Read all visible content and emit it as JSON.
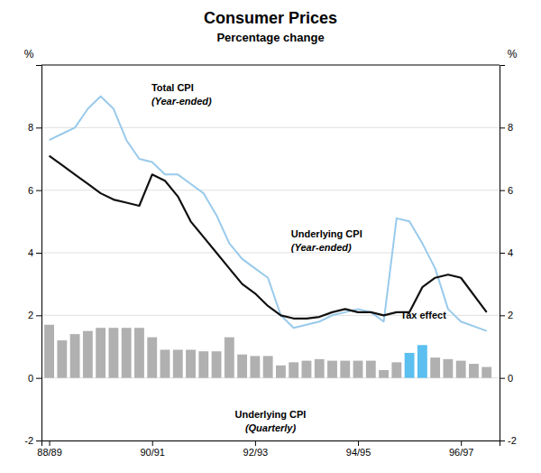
{
  "chart_data": {
    "type": "bar",
    "title": "Consumer Prices",
    "subtitle": "Percentage change",
    "ylabel": "%",
    "y2label": "%",
    "xlim": [
      1987.85,
      1996.75
    ],
    "xticks": [
      {
        "value": 1988,
        "label": "88/89"
      },
      {
        "value": 1990,
        "label": "90/91"
      },
      {
        "value": 1992,
        "label": "92/93"
      },
      {
        "value": 1994,
        "label": "94/95"
      },
      {
        "value": 1996,
        "label": "96/97"
      }
    ],
    "ylim": [
      -2,
      10
    ],
    "yticks": [
      -2,
      0,
      2,
      4,
      6,
      8
    ],
    "y2lim": [
      -2,
      10
    ],
    "y2ticks": [
      -2,
      0,
      2,
      4,
      6,
      8
    ],
    "grid": true,
    "series": [
      {
        "type": "bar",
        "x": [
          1988.0,
          1988.25,
          1988.5,
          1988.75,
          1989.0,
          1989.25,
          1989.5,
          1989.75,
          1990.0,
          1990.25,
          1990.5,
          1990.75,
          1991.0,
          1991.25,
          1991.5,
          1991.75,
          1992.0,
          1992.25,
          1992.5,
          1992.75,
          1993.0,
          1993.25,
          1993.5,
          1993.75,
          1994.0,
          1994.25,
          1994.5,
          1994.75,
          1995.0,
          1995.25,
          1995.5,
          1995.75,
          1996.0,
          1996.25,
          1996.5
        ],
        "values": [
          1.7,
          1.2,
          1.4,
          1.5,
          1.6,
          1.6,
          1.6,
          1.6,
          1.3,
          0.9,
          0.9,
          0.9,
          0.85,
          0.85,
          1.3,
          0.75,
          0.7,
          0.7,
          0.4,
          0.5,
          0.55,
          0.6,
          0.55,
          0.55,
          0.55,
          0.55,
          0.25,
          0.5,
          0.8,
          1.05,
          0.65,
          0.6,
          0.55,
          0.45,
          0.35
        ],
        "colors": [
          "#b0b0b0",
          "#b0b0b0",
          "#b0b0b0",
          "#b0b0b0",
          "#b0b0b0",
          "#b0b0b0",
          "#b0b0b0",
          "#b0b0b0",
          "#b0b0b0",
          "#b0b0b0",
          "#b0b0b0",
          "#b0b0b0",
          "#b0b0b0",
          "#b0b0b0",
          "#b0b0b0",
          "#b0b0b0",
          "#b0b0b0",
          "#b0b0b0",
          "#b0b0b0",
          "#b0b0b0",
          "#b0b0b0",
          "#b0b0b0",
          "#b0b0b0",
          "#b0b0b0",
          "#b0b0b0",
          "#b0b0b0",
          "#b0b0b0",
          "#b0b0b0",
          "#5bbfef",
          "#5bbfef",
          "#b0b0b0",
          "#b0b0b0",
          "#b0b0b0",
          "#b0b0b0",
          "#b0b0b0"
        ]
      },
      {
        "type": "line",
        "color": "#99caeb",
        "x": [
          1988.0,
          1988.25,
          1988.5,
          1988.75,
          1989.0,
          1989.25,
          1989.5,
          1989.75,
          1990.0,
          1990.25,
          1990.5,
          1990.75,
          1991.0,
          1991.25,
          1991.5,
          1991.75,
          1992.0,
          1992.25,
          1992.5,
          1992.75,
          1993.0,
          1993.25,
          1993.5,
          1993.75,
          1994.0,
          1994.25,
          1994.5,
          1994.75,
          1995.0,
          1995.25,
          1995.5,
          1995.75,
          1996.0,
          1996.5
        ],
        "values": [
          7.6,
          7.8,
          8.0,
          8.6,
          9.0,
          8.6,
          7.6,
          7.0,
          6.9,
          6.5,
          6.5,
          6.2,
          5.9,
          5.2,
          4.3,
          3.8,
          3.5,
          3.2,
          2.0,
          1.6,
          1.7,
          1.8,
          2.0,
          2.1,
          2.2,
          2.1,
          1.8,
          5.1,
          5.0,
          4.3,
          3.5,
          2.2,
          1.8,
          1.5
        ]
      },
      {
        "type": "line",
        "color": "#111111",
        "x": [
          1988.0,
          1988.25,
          1988.5,
          1988.75,
          1989.0,
          1989.25,
          1989.5,
          1989.75,
          1990.0,
          1990.25,
          1990.5,
          1990.75,
          1991.0,
          1991.25,
          1991.5,
          1991.75,
          1992.0,
          1992.25,
          1992.5,
          1992.75,
          1993.0,
          1993.25,
          1993.5,
          1993.75,
          1994.0,
          1994.25,
          1994.5,
          1994.75,
          1995.0,
          1995.25,
          1995.5,
          1995.75,
          1996.0,
          1996.5
        ],
        "values": [
          7.1,
          6.8,
          6.5,
          6.2,
          5.9,
          5.7,
          5.6,
          5.5,
          6.5,
          6.3,
          5.8,
          5.0,
          4.5,
          4.0,
          3.5,
          3.0,
          2.7,
          2.3,
          2.0,
          1.9,
          1.9,
          1.95,
          2.1,
          2.2,
          2.1,
          2.1,
          2.0,
          2.1,
          2.1,
          2.9,
          3.2,
          3.3,
          3.2,
          2.1
        ]
      }
    ],
    "annotations": [
      "Total CPI",
      "(Year-ended)",
      "Underlying CPI",
      "(Year-ended)",
      "Tax effect",
      "Underlying CPI",
      "(Quarterly)"
    ]
  }
}
